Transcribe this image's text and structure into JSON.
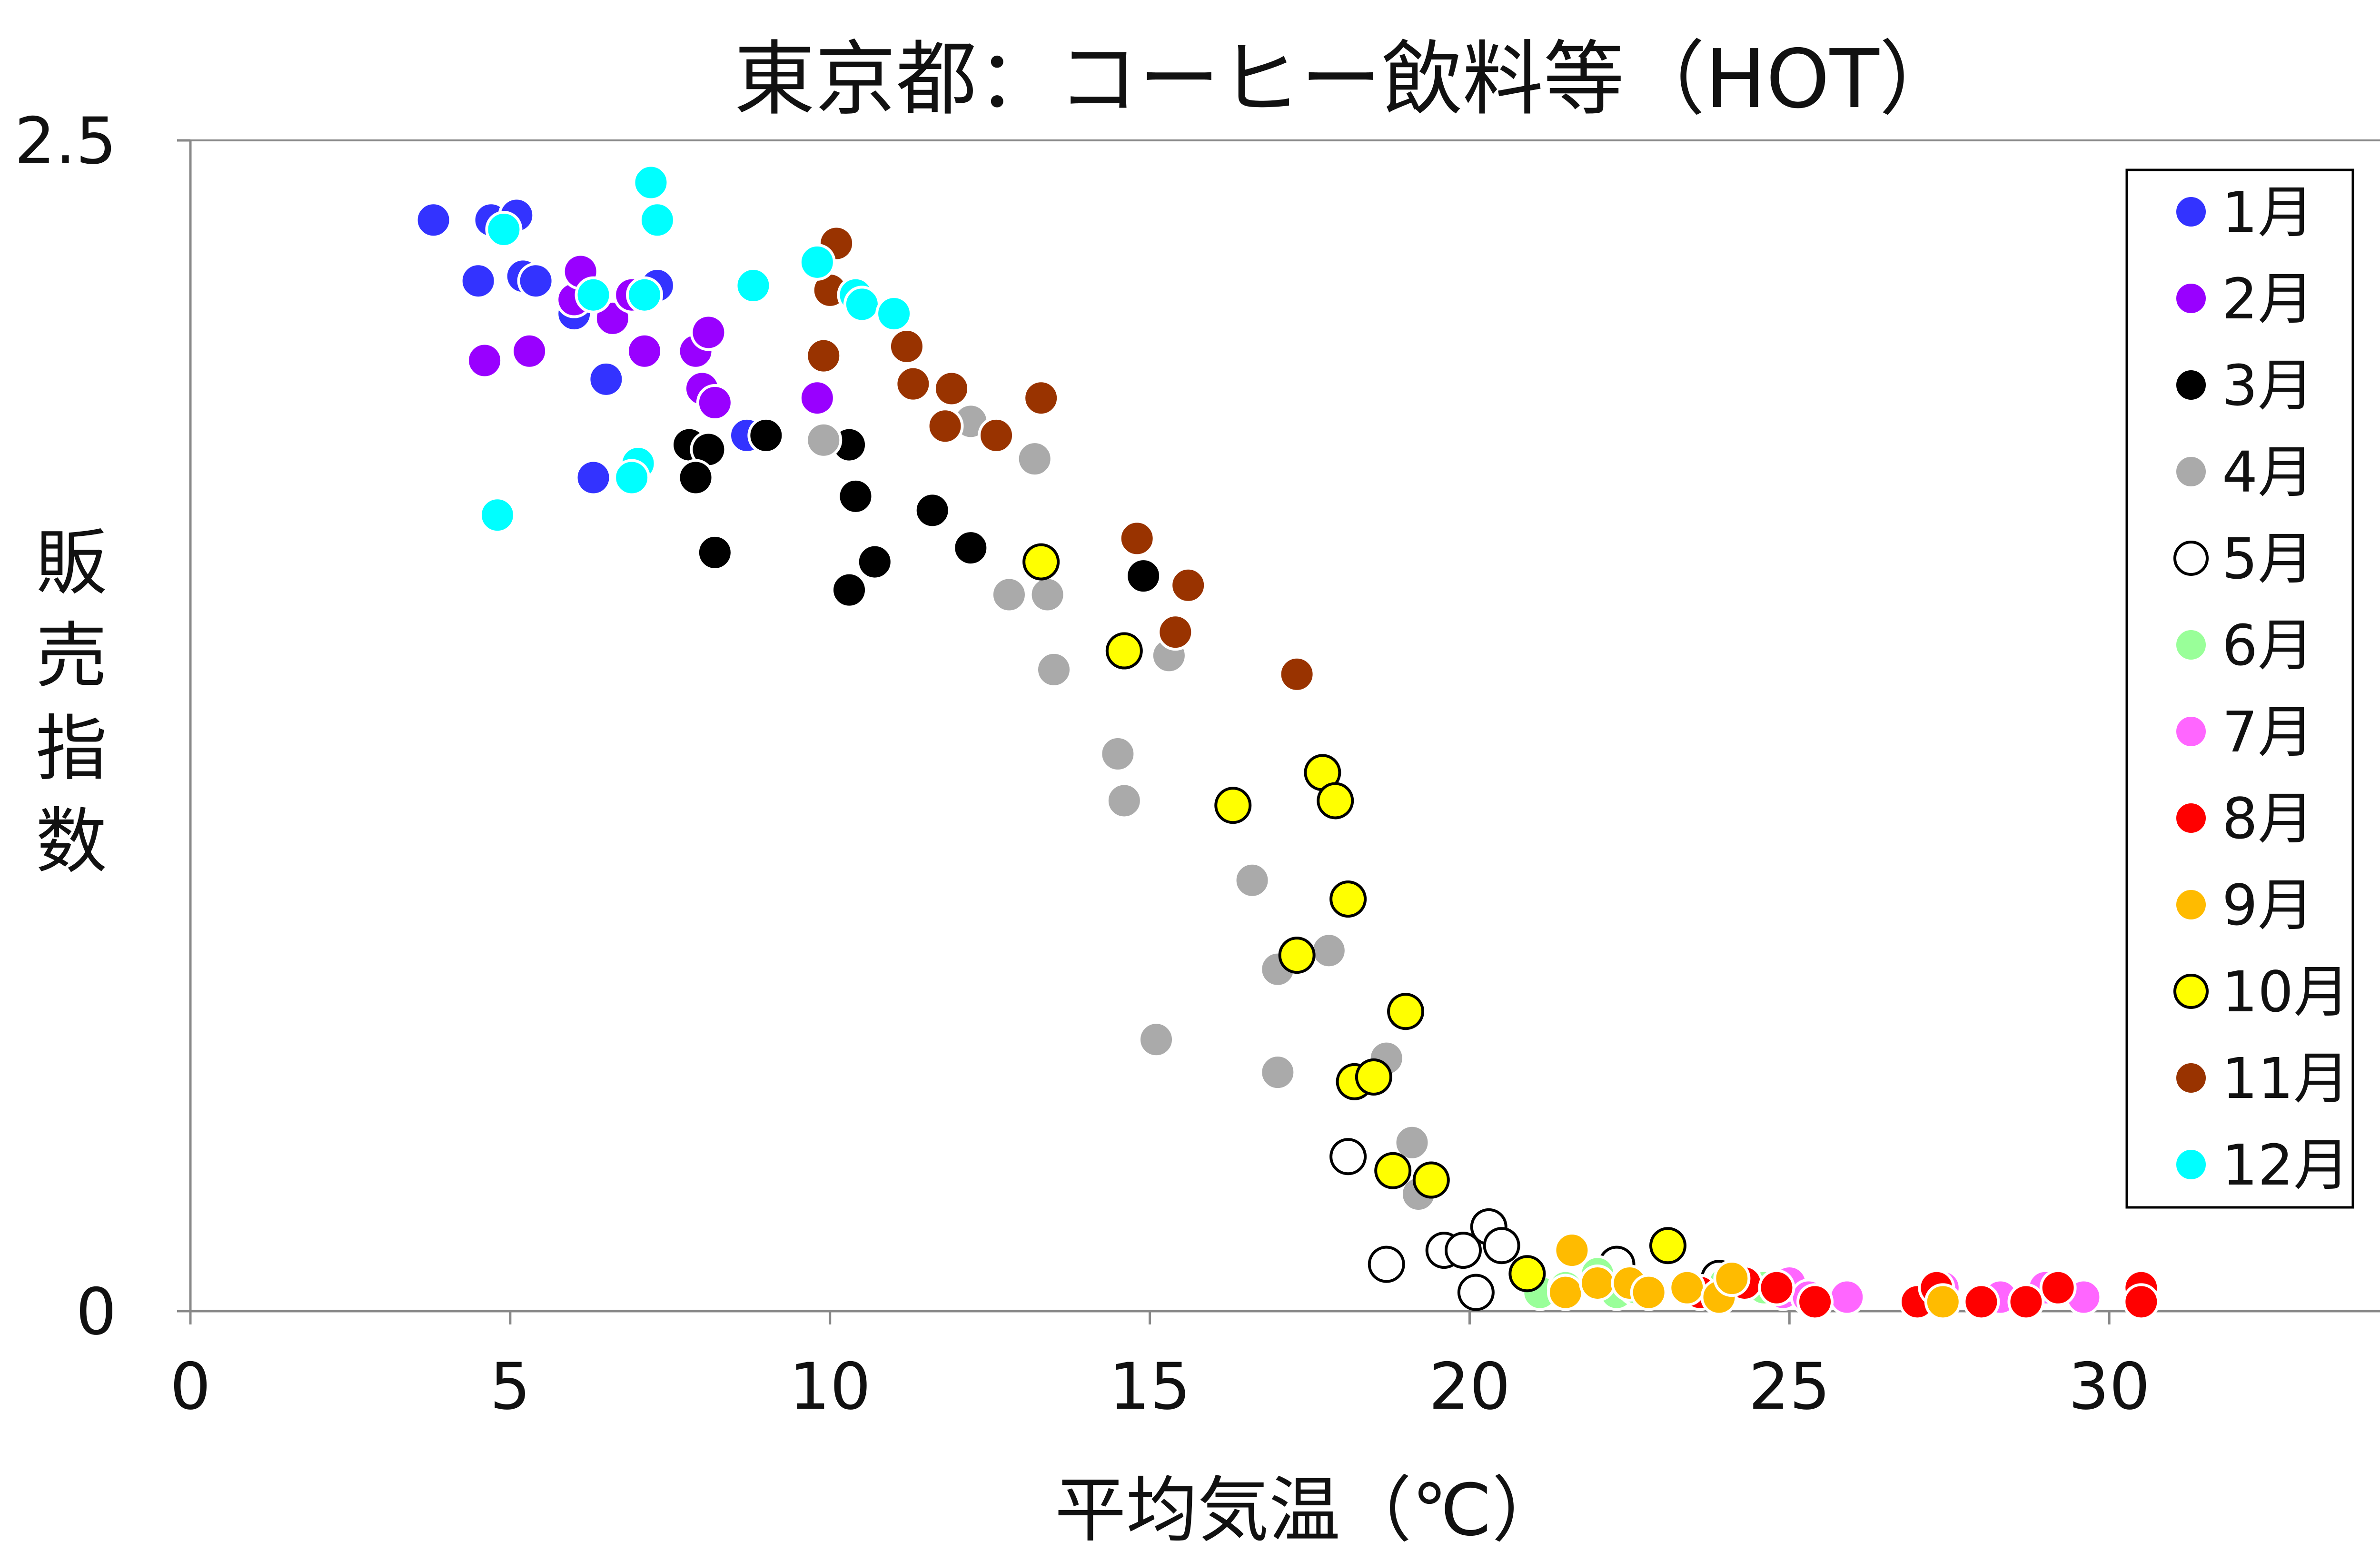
{
  "chart_data": {
    "type": "scatter",
    "title": "東京都：コーヒー飲料等（HOT）",
    "xlabel": "平均気温（℃）",
    "ylabel": "販売指数",
    "xlim": [
      0,
      35
    ],
    "ylim": [
      0,
      2.5
    ],
    "x_ticks": [
      "0",
      "5",
      "10",
      "15",
      "20",
      "25",
      "30",
      "35"
    ],
    "y_ticks": [
      "0",
      "2.5"
    ],
    "grid": false,
    "legend_position": "right",
    "series": [
      {
        "name": "1月",
        "color": "#3333ff",
        "x": [
          3.8,
          4.7,
          5.1,
          4.5,
          5.2,
          5.4,
          6.0,
          6.0,
          6.5,
          7.3,
          6.3,
          8.7
        ],
        "y": [
          2.33,
          2.33,
          2.34,
          2.2,
          2.21,
          2.2,
          2.13,
          2.16,
          1.99,
          2.19,
          1.78,
          1.87
        ]
      },
      {
        "name": "2月",
        "color": "#9900ff",
        "x": [
          4.6,
          5.3,
          6.0,
          6.1,
          6.6,
          6.9,
          7.1,
          7.9,
          8.1,
          8.0,
          8.2,
          9.8
        ],
        "y": [
          2.03,
          2.05,
          2.16,
          2.22,
          2.12,
          2.17,
          2.05,
          2.05,
          2.09,
          1.97,
          1.94,
          1.95
        ]
      },
      {
        "name": "3月",
        "color": "#000000",
        "x": [
          7.8,
          8.1,
          7.9,
          9.0,
          8.2,
          10.3,
          10.4,
          10.7,
          10.3,
          11.6,
          12.2,
          14.9
        ],
        "y": [
          1.85,
          1.84,
          1.78,
          1.87,
          1.62,
          1.85,
          1.74,
          1.6,
          1.54,
          1.71,
          1.63,
          1.57
        ]
      },
      {
        "name": "4月",
        "color": "#aaaaaa",
        "x": [
          9.9,
          12.2,
          13.2,
          12.8,
          13.4,
          13.5,
          14.5,
          14.6,
          15.3,
          15.1,
          16.6,
          17.0,
          17.8,
          17.0,
          18.7,
          19.1,
          19.2
        ],
        "y": [
          1.86,
          1.9,
          1.82,
          1.53,
          1.53,
          1.37,
          1.19,
          1.09,
          1.4,
          0.58,
          0.92,
          0.73,
          0.77,
          0.51,
          0.54,
          0.36,
          0.25
        ]
      },
      {
        "name": "5月",
        "color": "#ffffff",
        "x": [
          18.1,
          18.7,
          19.6,
          19.9,
          20.1,
          20.3,
          20.5,
          22.3,
          23.9
        ],
        "y": [
          0.33,
          0.1,
          0.13,
          0.13,
          0.04,
          0.18,
          0.14,
          0.1,
          0.07
        ]
      },
      {
        "name": "6月",
        "color": "#99ff99",
        "x": [
          21.1,
          21.5,
          22.0,
          22.3,
          22.6,
          24.0,
          24.6
        ],
        "y": [
          0.04,
          0.05,
          0.08,
          0.04,
          0.05,
          0.06,
          0.05
        ]
      },
      {
        "name": "7月",
        "color": "#ff66ff",
        "x": [
          24.9,
          25.0,
          25.3,
          25.9,
          27.4,
          28.3,
          29.0,
          29.6
        ],
        "y": [
          0.04,
          0.06,
          0.03,
          0.03,
          0.05,
          0.03,
          0.05,
          0.03
        ]
      },
      {
        "name": "8月",
        "color": "#ff0000",
        "x": [
          23.6,
          24.3,
          24.8,
          25.4,
          27.0,
          27.3,
          28.0,
          28.7,
          29.2,
          30.5,
          30.5
        ],
        "y": [
          0.04,
          0.06,
          0.05,
          0.02,
          0.02,
          0.05,
          0.02,
          0.02,
          0.05,
          0.05,
          0.02
        ]
      },
      {
        "name": "9月",
        "color": "#ffbb00",
        "x": [
          21.5,
          21.6,
          22.0,
          22.5,
          22.8,
          23.4,
          23.9,
          24.1,
          27.4
        ],
        "y": [
          0.04,
          0.13,
          0.06,
          0.06,
          0.04,
          0.05,
          0.03,
          0.07,
          0.02
        ]
      },
      {
        "name": "10月",
        "color": "#ffff00",
        "x": [
          13.3,
          14.6,
          16.3,
          17.3,
          17.7,
          17.9,
          18.1,
          18.2,
          18.5,
          19.0,
          18.8,
          19.4,
          20.9,
          23.1
        ],
        "y": [
          1.6,
          1.41,
          1.08,
          0.76,
          1.15,
          1.09,
          0.88,
          0.49,
          0.5,
          0.64,
          0.3,
          0.28,
          0.08,
          0.14
        ]
      },
      {
        "name": "11月",
        "color": "#993300",
        "x": [
          10.1,
          10.0,
          9.9,
          11.2,
          11.3,
          11.8,
          11.9,
          12.6,
          13.3,
          14.8,
          15.6,
          15.4,
          17.3
        ],
        "y": [
          2.28,
          2.18,
          2.04,
          2.06,
          1.98,
          1.89,
          1.97,
          1.87,
          1.95,
          1.65,
          1.55,
          1.45,
          1.36
        ]
      },
      {
        "name": "12月",
        "color": "#00ffff",
        "x": [
          4.9,
          7.2,
          7.3,
          6.3,
          7.1,
          8.8,
          9.8,
          10.4,
          10.5,
          11.0,
          7.0,
          6.9,
          4.8
        ],
        "y": [
          2.31,
          2.41,
          2.33,
          2.17,
          2.17,
          2.19,
          2.24,
          2.17,
          2.15,
          2.13,
          1.81,
          1.78,
          1.7
        ]
      }
    ]
  }
}
